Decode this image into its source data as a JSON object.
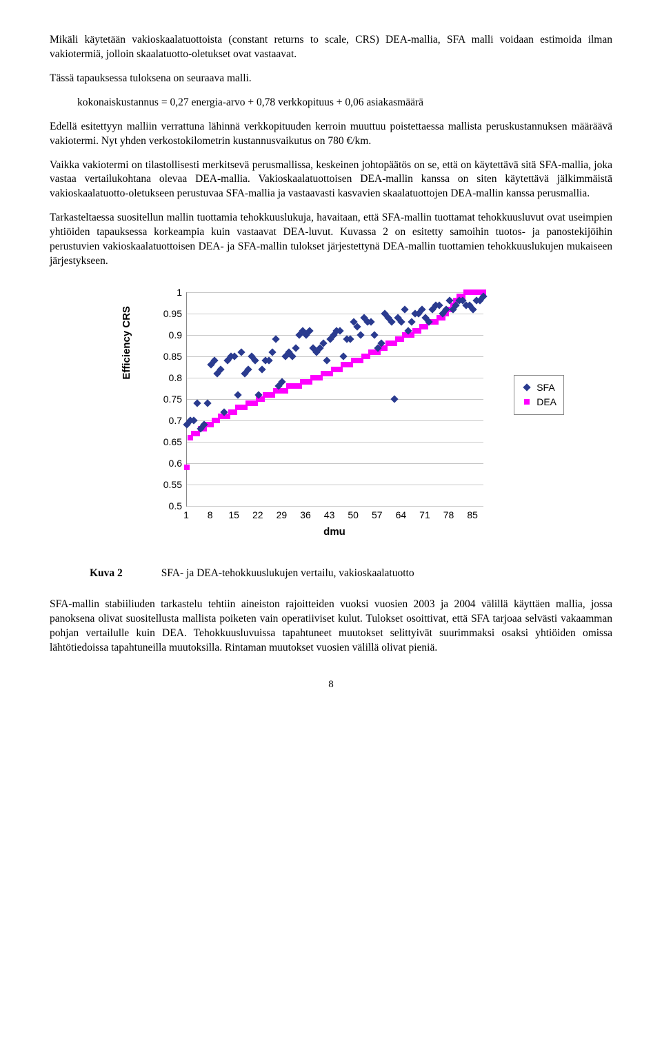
{
  "paragraphs": {
    "p1": "Mikäli käytetään vakioskaalatuottoista (constant returns to scale, CRS) DEA-mallia, SFA malli voidaan estimoida ilman vakiotermiä, jolloin skaalatuotto-oletukset ovat vastaavat.",
    "p2": "Tässä tapauksessa tuloksena on seuraava malli.",
    "eq": "kokonaiskustannus = 0,27 energia-arvo + 0,78 verkkopituus + 0,06 asiakasmäärä",
    "p3": "Edellä esitettyyn malliin verrattuna lähinnä verkkopituuden kerroin muuttuu poistettaessa mallista peruskustannuksen määräävä vakiotermi. Nyt yhden verkostokilometrin kustannusvaikutus on 780 €/km.",
    "p4": "Vaikka vakiotermi on tilastollisesti merkitsevä perusmallissa, keskeinen johtopäätös on se, että on käytettävä sitä SFA-mallia, joka vastaa vertailukohtana olevaa DEA-mallia. Vakioskaalatuottoisen DEA-mallin kanssa on siten käytettävä jälkimmäistä vakioskaalatuotto-oletukseen perustuvaa SFA-mallia ja vastaavasti kasvavien skaalatuottojen DEA-mallin kanssa perusmallia.",
    "p5": "Tarkasteltaessa suositellun mallin tuottamia tehokkuuslukuja, havaitaan, että SFA-mallin tuottamat tehokkuusluvut ovat useimpien yhtiöiden tapauksessa korkeampia kuin vastaavat DEA-luvut. Kuvassa 2 on esitetty samoihin tuotos- ja panostekijöihin perustuvien vakioskaalatuottoisen DEA- ja SFA-mallin tulokset järjestettynä DEA-mallin tuottamien tehokkuuslukujen mukaiseen järjestykseen.",
    "p6": "SFA-mallin stabiiliuden tarkastelu tehtiin aineiston rajoitteiden vuoksi vuosien 2003 ja 2004 välillä käyttäen mallia, jossa panoksena olivat suositellusta mallista poiketen vain operatiiviset kulut. Tulokset osoittivat, että SFA tarjoaa selvästi vakaamman pohjan vertailulle kuin DEA. Tehokkuusluvuissa tapahtuneet muutokset selittyivät suurimmaksi osaksi yhtiöiden omissa lähtötiedoissa tapahtuneilla muutoksilla. Rintaman muutokset vuosien välillä olivat pieniä."
  },
  "figure": {
    "label": "Kuva 2",
    "caption": "SFA- ja DEA-tehokkuuslukujen vertailu, vakioskaalatuotto"
  },
  "chart": {
    "ylabel": "Efficiency CRS",
    "xlabel": "dmu",
    "ylim": [
      0.5,
      1.0
    ],
    "ytick_step": 0.05,
    "y_ticks": [
      "1",
      "0.95",
      "0.9",
      "0.85",
      "0.8",
      "0.75",
      "0.7",
      "0.65",
      "0.6",
      "0.55",
      "0.5"
    ],
    "xlim": [
      1,
      88
    ],
    "x_ticks": [
      1,
      8,
      15,
      22,
      29,
      36,
      43,
      50,
      57,
      64,
      71,
      78,
      85
    ],
    "legend": [
      "SFA",
      "DEA"
    ],
    "colors": {
      "sfa": "#2a3b8f",
      "dea": "#ff00ff",
      "grid": "#c8c8c8",
      "bg": "#ffffff"
    },
    "marker_sfa": "diamond",
    "marker_dea": "square",
    "marker_size": 8,
    "sfa": [
      [
        1,
        0.69
      ],
      [
        2,
        0.7
      ],
      [
        3,
        0.7
      ],
      [
        4,
        0.74
      ],
      [
        5,
        0.68
      ],
      [
        6,
        0.69
      ],
      [
        7,
        0.74
      ],
      [
        8,
        0.83
      ],
      [
        9,
        0.84
      ],
      [
        10,
        0.81
      ],
      [
        11,
        0.82
      ],
      [
        12,
        0.72
      ],
      [
        13,
        0.84
      ],
      [
        14,
        0.85
      ],
      [
        15,
        0.85
      ],
      [
        16,
        0.76
      ],
      [
        17,
        0.86
      ],
      [
        18,
        0.81
      ],
      [
        19,
        0.82
      ],
      [
        20,
        0.85
      ],
      [
        21,
        0.84
      ],
      [
        22,
        0.76
      ],
      [
        23,
        0.82
      ],
      [
        24,
        0.84
      ],
      [
        25,
        0.84
      ],
      [
        26,
        0.86
      ],
      [
        27,
        0.89
      ],
      [
        28,
        0.78
      ],
      [
        29,
        0.79
      ],
      [
        30,
        0.85
      ],
      [
        31,
        0.86
      ],
      [
        32,
        0.85
      ],
      [
        33,
        0.87
      ],
      [
        34,
        0.9
      ],
      [
        35,
        0.91
      ],
      [
        36,
        0.9
      ],
      [
        37,
        0.91
      ],
      [
        38,
        0.87
      ],
      [
        39,
        0.86
      ],
      [
        40,
        0.87
      ],
      [
        41,
        0.88
      ],
      [
        42,
        0.84
      ],
      [
        43,
        0.89
      ],
      [
        44,
        0.9
      ],
      [
        45,
        0.91
      ],
      [
        46,
        0.91
      ],
      [
        47,
        0.85
      ],
      [
        48,
        0.89
      ],
      [
        49,
        0.89
      ],
      [
        50,
        0.93
      ],
      [
        51,
        0.92
      ],
      [
        52,
        0.9
      ],
      [
        53,
        0.94
      ],
      [
        54,
        0.93
      ],
      [
        55,
        0.93
      ],
      [
        56,
        0.9
      ],
      [
        57,
        0.87
      ],
      [
        58,
        0.88
      ],
      [
        59,
        0.95
      ],
      [
        60,
        0.94
      ],
      [
        61,
        0.93
      ],
      [
        62,
        0.75
      ],
      [
        63,
        0.94
      ],
      [
        64,
        0.93
      ],
      [
        65,
        0.96
      ],
      [
        66,
        0.91
      ],
      [
        67,
        0.93
      ],
      [
        68,
        0.95
      ],
      [
        69,
        0.95
      ],
      [
        70,
        0.96
      ],
      [
        71,
        0.94
      ],
      [
        72,
        0.93
      ],
      [
        73,
        0.96
      ],
      [
        74,
        0.97
      ],
      [
        75,
        0.97
      ],
      [
        76,
        0.95
      ],
      [
        77,
        0.96
      ],
      [
        78,
        0.98
      ],
      [
        79,
        0.96
      ],
      [
        80,
        0.97
      ],
      [
        81,
        0.98
      ],
      [
        82,
        0.98
      ],
      [
        83,
        0.97
      ],
      [
        84,
        0.97
      ],
      [
        85,
        0.96
      ],
      [
        86,
        0.98
      ],
      [
        87,
        0.98
      ],
      [
        88,
        0.99
      ]
    ],
    "dea": [
      [
        1,
        0.59
      ],
      [
        2,
        0.66
      ],
      [
        3,
        0.67
      ],
      [
        4,
        0.67
      ],
      [
        5,
        0.68
      ],
      [
        6,
        0.68
      ],
      [
        7,
        0.69
      ],
      [
        8,
        0.69
      ],
      [
        9,
        0.7
      ],
      [
        10,
        0.7
      ],
      [
        11,
        0.71
      ],
      [
        12,
        0.71
      ],
      [
        13,
        0.71
      ],
      [
        14,
        0.72
      ],
      [
        15,
        0.72
      ],
      [
        16,
        0.73
      ],
      [
        17,
        0.73
      ],
      [
        18,
        0.73
      ],
      [
        19,
        0.74
      ],
      [
        20,
        0.74
      ],
      [
        21,
        0.74
      ],
      [
        22,
        0.75
      ],
      [
        23,
        0.75
      ],
      [
        24,
        0.76
      ],
      [
        25,
        0.76
      ],
      [
        26,
        0.76
      ],
      [
        27,
        0.77
      ],
      [
        28,
        0.77
      ],
      [
        29,
        0.77
      ],
      [
        30,
        0.77
      ],
      [
        31,
        0.78
      ],
      [
        32,
        0.78
      ],
      [
        33,
        0.78
      ],
      [
        34,
        0.78
      ],
      [
        35,
        0.79
      ],
      [
        36,
        0.79
      ],
      [
        37,
        0.79
      ],
      [
        38,
        0.8
      ],
      [
        39,
        0.8
      ],
      [
        40,
        0.8
      ],
      [
        41,
        0.81
      ],
      [
        42,
        0.81
      ],
      [
        43,
        0.81
      ],
      [
        44,
        0.82
      ],
      [
        45,
        0.82
      ],
      [
        46,
        0.82
      ],
      [
        47,
        0.83
      ],
      [
        48,
        0.83
      ],
      [
        49,
        0.83
      ],
      [
        50,
        0.84
      ],
      [
        51,
        0.84
      ],
      [
        52,
        0.84
      ],
      [
        53,
        0.85
      ],
      [
        54,
        0.85
      ],
      [
        55,
        0.86
      ],
      [
        56,
        0.86
      ],
      [
        57,
        0.86
      ],
      [
        58,
        0.87
      ],
      [
        59,
        0.87
      ],
      [
        60,
        0.88
      ],
      [
        61,
        0.88
      ],
      [
        62,
        0.88
      ],
      [
        63,
        0.89
      ],
      [
        64,
        0.89
      ],
      [
        65,
        0.9
      ],
      [
        66,
        0.9
      ],
      [
        67,
        0.9
      ],
      [
        68,
        0.91
      ],
      [
        69,
        0.91
      ],
      [
        70,
        0.92
      ],
      [
        71,
        0.92
      ],
      [
        72,
        0.93
      ],
      [
        73,
        0.93
      ],
      [
        74,
        0.93
      ],
      [
        75,
        0.94
      ],
      [
        76,
        0.94
      ],
      [
        77,
        0.95
      ],
      [
        78,
        0.96
      ],
      [
        79,
        0.97
      ],
      [
        80,
        0.98
      ],
      [
        81,
        0.99
      ],
      [
        82,
        0.99
      ],
      [
        83,
        1.0
      ],
      [
        84,
        1.0
      ],
      [
        85,
        1.0
      ],
      [
        86,
        1.0
      ],
      [
        87,
        1.0
      ],
      [
        88,
        1.0
      ]
    ]
  },
  "page_number": "8"
}
